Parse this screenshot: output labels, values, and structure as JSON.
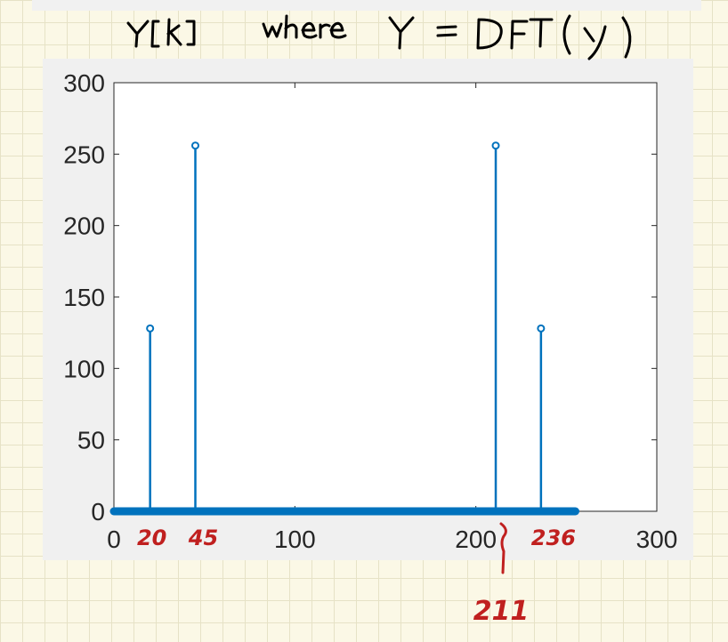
{
  "chart_data": {
    "type": "stem",
    "title": "Y[k] where Y = DFT(y)",
    "xlabel": "",
    "ylabel": "",
    "xlim": [
      0,
      300
    ],
    "ylim": [
      0,
      300
    ],
    "xticks": [
      0,
      100,
      200,
      300
    ],
    "yticks": [
      0,
      50,
      100,
      150,
      200,
      250,
      300
    ],
    "grid": false,
    "x": [
      20,
      45,
      211,
      236
    ],
    "y": [
      128,
      256,
      256,
      128
    ],
    "baseline_range": [
      0,
      255
    ],
    "annotations": [
      "20",
      "45",
      "211",
      "236"
    ],
    "colors": {
      "stem": "#0072bd",
      "annotation": "#c0201f",
      "ink": "#000000"
    }
  }
}
